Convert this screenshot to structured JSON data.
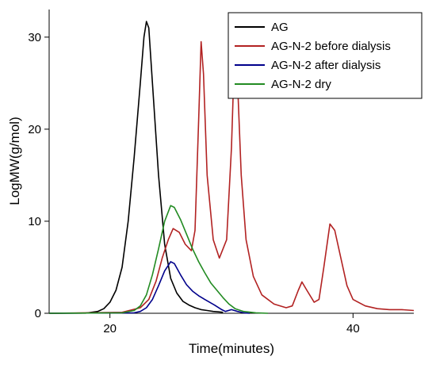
{
  "chart_data": {
    "type": "line",
    "title": "",
    "xlabel": "Time(minutes)",
    "ylabel": "LogMW(g/mol)",
    "xlim": [
      15,
      45
    ],
    "ylim": [
      0,
      33
    ],
    "x_ticks": [
      20,
      40
    ],
    "y_ticks": [
      0,
      10,
      20,
      30
    ],
    "grid": false,
    "legend_position": "top-right",
    "series": [
      {
        "name": "AG",
        "color": "#000000",
        "points": [
          [
            15,
            0
          ],
          [
            18,
            0.02
          ],
          [
            19,
            0.2
          ],
          [
            19.5,
            0.5
          ],
          [
            20,
            1.2
          ],
          [
            20.5,
            2.5
          ],
          [
            21,
            5
          ],
          [
            21.5,
            10
          ],
          [
            22,
            17
          ],
          [
            22.5,
            25
          ],
          [
            22.8,
            30
          ],
          [
            23,
            31.7
          ],
          [
            23.2,
            31
          ],
          [
            23.5,
            25
          ],
          [
            24,
            15
          ],
          [
            24.5,
            7.5
          ],
          [
            25,
            3.8
          ],
          [
            25.5,
            2.2
          ],
          [
            26,
            1.3
          ],
          [
            26.5,
            0.9
          ],
          [
            27,
            0.6
          ],
          [
            27.5,
            0.4
          ],
          [
            28,
            0.3
          ],
          [
            28.5,
            0.2
          ],
          [
            29,
            0.15
          ],
          [
            29.3,
            0.1
          ]
        ]
      },
      {
        "name": "AG-N-2 before dialysis",
        "color": "#b22222",
        "points": [
          [
            15,
            0
          ],
          [
            21,
            0.1
          ],
          [
            22.5,
            0.6
          ],
          [
            23.2,
            1.5
          ],
          [
            23.8,
            3.5
          ],
          [
            24.3,
            6
          ],
          [
            24.8,
            8
          ],
          [
            25.2,
            9.2
          ],
          [
            25.7,
            8.8
          ],
          [
            26.2,
            7.5
          ],
          [
            26.7,
            6.8
          ],
          [
            27,
            9
          ],
          [
            27.3,
            21
          ],
          [
            27.5,
            29.5
          ],
          [
            27.7,
            26
          ],
          [
            28,
            15
          ],
          [
            28.5,
            8
          ],
          [
            29,
            6
          ],
          [
            29.6,
            8
          ],
          [
            30,
            18
          ],
          [
            30.25,
            28.3
          ],
          [
            30.5,
            25
          ],
          [
            30.8,
            15
          ],
          [
            31.2,
            8
          ],
          [
            31.8,
            4
          ],
          [
            32.5,
            2
          ],
          [
            33.5,
            1
          ],
          [
            34.5,
            0.6
          ],
          [
            35,
            0.8
          ],
          [
            35.5,
            2.5
          ],
          [
            35.8,
            3.4
          ],
          [
            36.2,
            2.5
          ],
          [
            36.8,
            1.2
          ],
          [
            37.2,
            1.5
          ],
          [
            37.6,
            5
          ],
          [
            38.1,
            9.7
          ],
          [
            38.5,
            9
          ],
          [
            39,
            6
          ],
          [
            39.5,
            3
          ],
          [
            40,
            1.5
          ],
          [
            41,
            0.8
          ],
          [
            42,
            0.5
          ],
          [
            43,
            0.4
          ],
          [
            44,
            0.4
          ],
          [
            45,
            0.3
          ]
        ]
      },
      {
        "name": "AG-N-2 after dialysis",
        "color": "#00008b",
        "points": [
          [
            15,
            0
          ],
          [
            22,
            0.05
          ],
          [
            22.5,
            0.2
          ],
          [
            23,
            0.6
          ],
          [
            23.5,
            1.5
          ],
          [
            24,
            3
          ],
          [
            24.5,
            4.6
          ],
          [
            25,
            5.6
          ],
          [
            25.3,
            5.4
          ],
          [
            25.8,
            4.2
          ],
          [
            26.3,
            3.1
          ],
          [
            26.8,
            2.4
          ],
          [
            27.3,
            1.9
          ],
          [
            27.8,
            1.5
          ],
          [
            28.2,
            1.2
          ],
          [
            28.6,
            0.9
          ],
          [
            29.2,
            0.4
          ],
          [
            29.5,
            0.2
          ],
          [
            30,
            0.4
          ],
          [
            30.5,
            0.2
          ],
          [
            31,
            0.05
          ],
          [
            31.5,
            0
          ]
        ]
      },
      {
        "name": "AG-N-2 dry",
        "color": "#228b22",
        "points": [
          [
            15,
            0
          ],
          [
            21,
            0.05
          ],
          [
            22,
            0.3
          ],
          [
            22.5,
            0.8
          ],
          [
            23,
            2
          ],
          [
            23.5,
            4.2
          ],
          [
            24,
            7
          ],
          [
            24.5,
            10
          ],
          [
            25,
            11.7
          ],
          [
            25.3,
            11.5
          ],
          [
            25.8,
            10.2
          ],
          [
            26.3,
            8.6
          ],
          [
            26.8,
            7
          ],
          [
            27.3,
            5.6
          ],
          [
            27.8,
            4.4
          ],
          [
            28.3,
            3.3
          ],
          [
            28.8,
            2.5
          ],
          [
            29.3,
            1.7
          ],
          [
            29.8,
            1
          ],
          [
            30.3,
            0.5
          ],
          [
            31,
            0.2
          ],
          [
            32,
            0.05
          ],
          [
            33,
            0
          ]
        ]
      }
    ]
  }
}
